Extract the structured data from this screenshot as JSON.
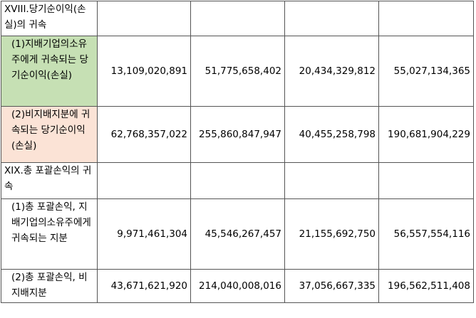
{
  "rows": [
    {
      "label": "XVIII.당기순이익(손실)의 귀속",
      "values": [
        "",
        "",
        "",
        ""
      ]
    },
    {
      "label": "(1)지배기업의소유주에게 귀속되는 당기순이익(손실)",
      "values": [
        "13,109,020,891",
        "51,775,658,402",
        "20,434,329,812",
        "55,027,134,365"
      ],
      "highlight": "#c6e0b4"
    },
    {
      "label": "(2)비지배지분에 귀속되는 당기순이익(손실)",
      "values": [
        "62,768,357,022",
        "255,860,847,947",
        "40,455,258,798",
        "190,681,904,229"
      ],
      "highlight": "#fbe3d6"
    },
    {
      "label": "XIX.총 포괄손익의 귀속",
      "values": [
        "",
        "",
        "",
        ""
      ]
    },
    {
      "label": "(1)총 포괄손익, 지배기업의소유주에게 귀속되는 지분",
      "values": [
        "9,971,461,304",
        "45,546,267,457",
        "21,155,692,750",
        "56,557,554,116"
      ]
    },
    {
      "label": "(2)총 포괄손익, 비지배지분",
      "values": [
        "43,671,621,920",
        "214,040,008,016",
        "37,056,667,335",
        "196,562,511,408"
      ]
    }
  ]
}
